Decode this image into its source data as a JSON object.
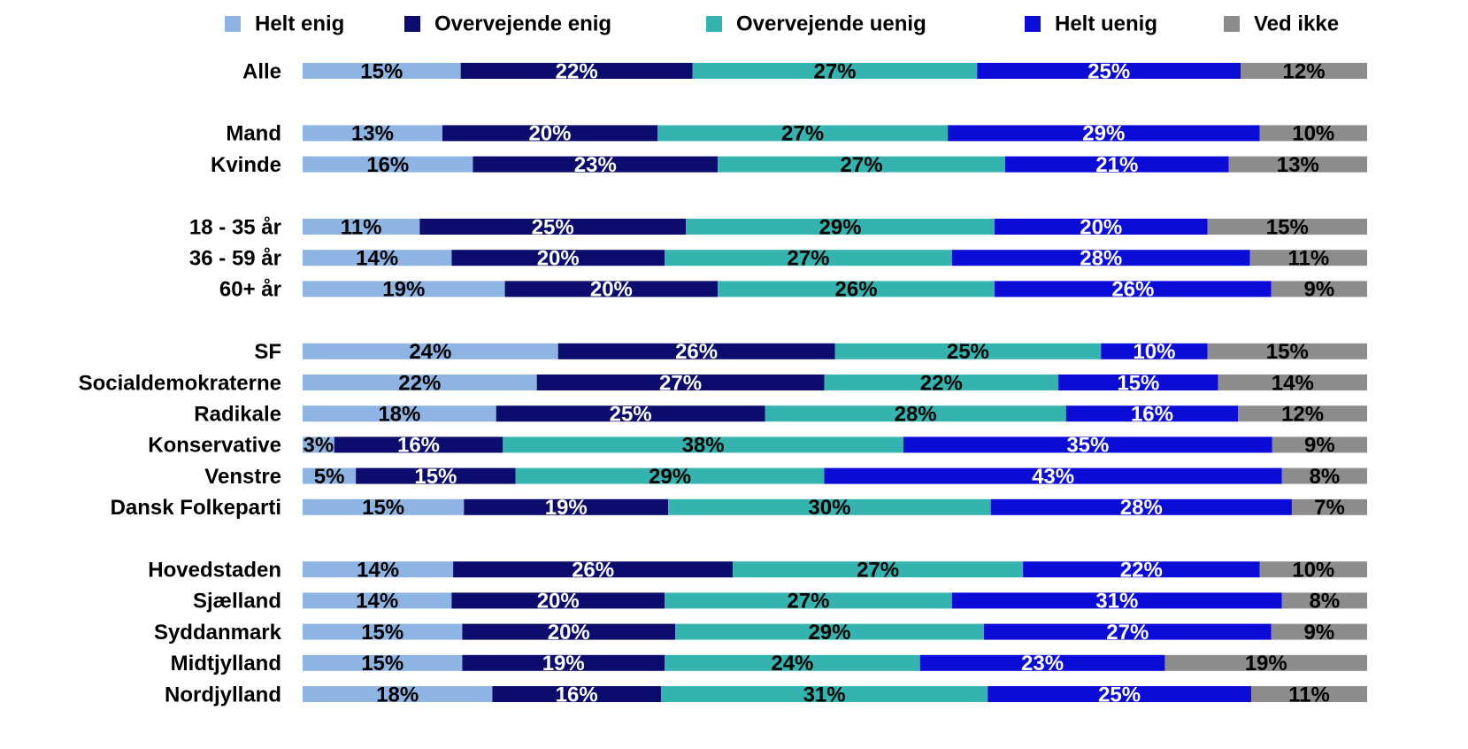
{
  "chart_data": {
    "type": "stacked_barh_percent",
    "categories": [
      "Alle",
      null,
      "Mand",
      "Kvinde",
      null,
      "18 - 35 år",
      "36 - 59 år",
      "60+ år",
      null,
      "SF",
      "Socialdemokraterne",
      "Radikale",
      "Konservative",
      "Venstre",
      "Dansk Folkeparti",
      null,
      "Hovedstaden",
      "Sjælland",
      "Syddanmark",
      "Midtjylland",
      "Nordjylland"
    ],
    "legend": "top",
    "series": [
      {
        "name": "Helt enig",
        "color": "#8db4e2",
        "label_color": "#000000",
        "values": [
          15,
          null,
          13,
          16,
          null,
          11,
          14,
          19,
          null,
          24,
          22,
          18,
          3,
          5,
          15,
          null,
          14,
          14,
          15,
          15,
          18
        ],
        "value_labels": [
          "15%",
          null,
          "13%",
          "16%",
          null,
          "11%",
          "14%",
          "19%",
          null,
          "24%",
          "22%",
          "18%",
          "3%",
          "5%",
          "15%",
          null,
          "14%",
          "14%",
          "15%",
          "15%",
          "18%"
        ]
      },
      {
        "name": "Overvejende enig",
        "color": "#0c0c6e",
        "label_color": "#ffffff",
        "values": [
          22,
          null,
          20,
          23,
          null,
          25,
          20,
          20,
          null,
          26,
          27,
          25,
          16,
          15,
          19,
          null,
          26,
          20,
          20,
          19,
          16
        ],
        "value_labels": [
          "22%",
          null,
          "20%",
          "23%",
          null,
          "25%",
          "20%",
          "20%",
          null,
          "26%",
          "27%",
          "25%",
          "16%",
          "15%",
          "19%",
          null,
          "26%",
          "20%",
          "20%",
          "19%",
          "16%"
        ]
      },
      {
        "name": "Overvejende uenig",
        "color": "#35b3ae",
        "label_color": "#000000",
        "values": [
          27,
          null,
          27,
          27,
          null,
          29,
          27,
          26,
          null,
          25,
          22,
          28,
          38,
          29,
          30,
          null,
          27,
          27,
          29,
          24,
          31
        ],
        "value_labels": [
          "27%",
          null,
          "27%",
          "27%",
          null,
          "29%",
          "27%",
          "26%",
          null,
          "25%",
          "22%",
          "28%",
          "38%",
          "29%",
          "30%",
          null,
          "27%",
          "27%",
          "29%",
          "24%",
          "31%"
        ]
      },
      {
        "name": "Helt uenig",
        "color": "#0c0cd8",
        "label_color": "#ffffff",
        "values": [
          25,
          null,
          29,
          21,
          null,
          20,
          28,
          26,
          null,
          10,
          15,
          16,
          35,
          43,
          28,
          null,
          22,
          31,
          27,
          23,
          25
        ],
        "value_labels": [
          "25%",
          null,
          "29%",
          "21%",
          null,
          "20%",
          "28%",
          "26%",
          null,
          "10%",
          "15%",
          "16%",
          "35%",
          "43%",
          "28%",
          null,
          "22%",
          "31%",
          "27%",
          "23%",
          "25%"
        ]
      },
      {
        "name": "Ved ikke",
        "color": "#8c8c8c",
        "label_color": "#000000",
        "values": [
          12,
          null,
          10,
          13,
          null,
          15,
          11,
          9,
          null,
          15,
          14,
          12,
          9,
          8,
          7,
          null,
          10,
          8,
          9,
          19,
          11
        ],
        "value_labels": [
          "12%",
          null,
          "10%",
          "13%",
          null,
          "15%",
          "11%",
          "9%",
          null,
          "15%",
          "14%",
          "12%",
          "9%",
          "8%",
          "7%",
          null,
          "10%",
          "8%",
          "9%",
          "19%",
          "11%"
        ]
      }
    ]
  }
}
